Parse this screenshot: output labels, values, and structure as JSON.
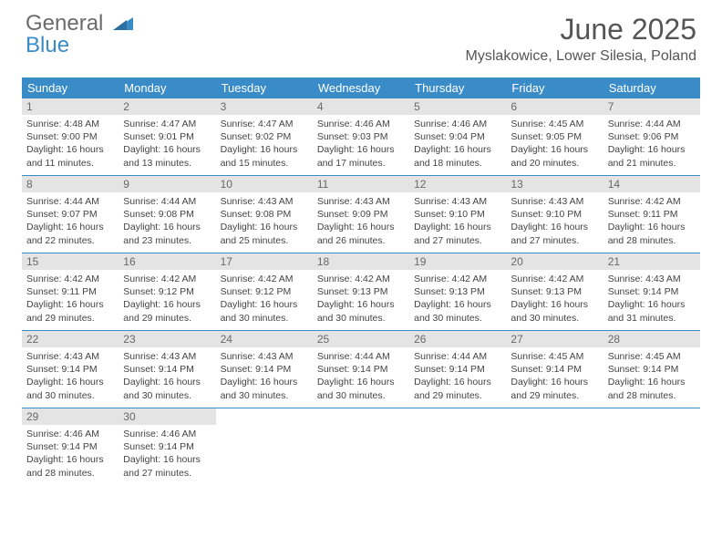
{
  "brand": {
    "word1": "General",
    "word2": "Blue"
  },
  "title": "June 2025",
  "location": "Myslakowice, Lower Silesia, Poland",
  "colors": {
    "header_bg": "#3a8cc9",
    "daynum_bg": "#e4e4e4",
    "text": "#444444",
    "title_text": "#555555"
  },
  "day_names": [
    "Sunday",
    "Monday",
    "Tuesday",
    "Wednesday",
    "Thursday",
    "Friday",
    "Saturday"
  ],
  "weeks": [
    [
      {
        "day": "1",
        "sunrise": "Sunrise: 4:48 AM",
        "sunset": "Sunset: 9:00 PM",
        "dl1": "Daylight: 16 hours",
        "dl2": "and 11 minutes."
      },
      {
        "day": "2",
        "sunrise": "Sunrise: 4:47 AM",
        "sunset": "Sunset: 9:01 PM",
        "dl1": "Daylight: 16 hours",
        "dl2": "and 13 minutes."
      },
      {
        "day": "3",
        "sunrise": "Sunrise: 4:47 AM",
        "sunset": "Sunset: 9:02 PM",
        "dl1": "Daylight: 16 hours",
        "dl2": "and 15 minutes."
      },
      {
        "day": "4",
        "sunrise": "Sunrise: 4:46 AM",
        "sunset": "Sunset: 9:03 PM",
        "dl1": "Daylight: 16 hours",
        "dl2": "and 17 minutes."
      },
      {
        "day": "5",
        "sunrise": "Sunrise: 4:46 AM",
        "sunset": "Sunset: 9:04 PM",
        "dl1": "Daylight: 16 hours",
        "dl2": "and 18 minutes."
      },
      {
        "day": "6",
        "sunrise": "Sunrise: 4:45 AM",
        "sunset": "Sunset: 9:05 PM",
        "dl1": "Daylight: 16 hours",
        "dl2": "and 20 minutes."
      },
      {
        "day": "7",
        "sunrise": "Sunrise: 4:44 AM",
        "sunset": "Sunset: 9:06 PM",
        "dl1": "Daylight: 16 hours",
        "dl2": "and 21 minutes."
      }
    ],
    [
      {
        "day": "8",
        "sunrise": "Sunrise: 4:44 AM",
        "sunset": "Sunset: 9:07 PM",
        "dl1": "Daylight: 16 hours",
        "dl2": "and 22 minutes."
      },
      {
        "day": "9",
        "sunrise": "Sunrise: 4:44 AM",
        "sunset": "Sunset: 9:08 PM",
        "dl1": "Daylight: 16 hours",
        "dl2": "and 23 minutes."
      },
      {
        "day": "10",
        "sunrise": "Sunrise: 4:43 AM",
        "sunset": "Sunset: 9:08 PM",
        "dl1": "Daylight: 16 hours",
        "dl2": "and 25 minutes."
      },
      {
        "day": "11",
        "sunrise": "Sunrise: 4:43 AM",
        "sunset": "Sunset: 9:09 PM",
        "dl1": "Daylight: 16 hours",
        "dl2": "and 26 minutes."
      },
      {
        "day": "12",
        "sunrise": "Sunrise: 4:43 AM",
        "sunset": "Sunset: 9:10 PM",
        "dl1": "Daylight: 16 hours",
        "dl2": "and 27 minutes."
      },
      {
        "day": "13",
        "sunrise": "Sunrise: 4:43 AM",
        "sunset": "Sunset: 9:10 PM",
        "dl1": "Daylight: 16 hours",
        "dl2": "and 27 minutes."
      },
      {
        "day": "14",
        "sunrise": "Sunrise: 4:42 AM",
        "sunset": "Sunset: 9:11 PM",
        "dl1": "Daylight: 16 hours",
        "dl2": "and 28 minutes."
      }
    ],
    [
      {
        "day": "15",
        "sunrise": "Sunrise: 4:42 AM",
        "sunset": "Sunset: 9:11 PM",
        "dl1": "Daylight: 16 hours",
        "dl2": "and 29 minutes."
      },
      {
        "day": "16",
        "sunrise": "Sunrise: 4:42 AM",
        "sunset": "Sunset: 9:12 PM",
        "dl1": "Daylight: 16 hours",
        "dl2": "and 29 minutes."
      },
      {
        "day": "17",
        "sunrise": "Sunrise: 4:42 AM",
        "sunset": "Sunset: 9:12 PM",
        "dl1": "Daylight: 16 hours",
        "dl2": "and 30 minutes."
      },
      {
        "day": "18",
        "sunrise": "Sunrise: 4:42 AM",
        "sunset": "Sunset: 9:13 PM",
        "dl1": "Daylight: 16 hours",
        "dl2": "and 30 minutes."
      },
      {
        "day": "19",
        "sunrise": "Sunrise: 4:42 AM",
        "sunset": "Sunset: 9:13 PM",
        "dl1": "Daylight: 16 hours",
        "dl2": "and 30 minutes."
      },
      {
        "day": "20",
        "sunrise": "Sunrise: 4:42 AM",
        "sunset": "Sunset: 9:13 PM",
        "dl1": "Daylight: 16 hours",
        "dl2": "and 30 minutes."
      },
      {
        "day": "21",
        "sunrise": "Sunrise: 4:43 AM",
        "sunset": "Sunset: 9:14 PM",
        "dl1": "Daylight: 16 hours",
        "dl2": "and 31 minutes."
      }
    ],
    [
      {
        "day": "22",
        "sunrise": "Sunrise: 4:43 AM",
        "sunset": "Sunset: 9:14 PM",
        "dl1": "Daylight: 16 hours",
        "dl2": "and 30 minutes."
      },
      {
        "day": "23",
        "sunrise": "Sunrise: 4:43 AM",
        "sunset": "Sunset: 9:14 PM",
        "dl1": "Daylight: 16 hours",
        "dl2": "and 30 minutes."
      },
      {
        "day": "24",
        "sunrise": "Sunrise: 4:43 AM",
        "sunset": "Sunset: 9:14 PM",
        "dl1": "Daylight: 16 hours",
        "dl2": "and 30 minutes."
      },
      {
        "day": "25",
        "sunrise": "Sunrise: 4:44 AM",
        "sunset": "Sunset: 9:14 PM",
        "dl1": "Daylight: 16 hours",
        "dl2": "and 30 minutes."
      },
      {
        "day": "26",
        "sunrise": "Sunrise: 4:44 AM",
        "sunset": "Sunset: 9:14 PM",
        "dl1": "Daylight: 16 hours",
        "dl2": "and 29 minutes."
      },
      {
        "day": "27",
        "sunrise": "Sunrise: 4:45 AM",
        "sunset": "Sunset: 9:14 PM",
        "dl1": "Daylight: 16 hours",
        "dl2": "and 29 minutes."
      },
      {
        "day": "28",
        "sunrise": "Sunrise: 4:45 AM",
        "sunset": "Sunset: 9:14 PM",
        "dl1": "Daylight: 16 hours",
        "dl2": "and 28 minutes."
      }
    ],
    [
      {
        "day": "29",
        "sunrise": "Sunrise: 4:46 AM",
        "sunset": "Sunset: 9:14 PM",
        "dl1": "Daylight: 16 hours",
        "dl2": "and 28 minutes."
      },
      {
        "day": "30",
        "sunrise": "Sunrise: 4:46 AM",
        "sunset": "Sunset: 9:14 PM",
        "dl1": "Daylight: 16 hours",
        "dl2": "and 27 minutes."
      },
      null,
      null,
      null,
      null,
      null
    ]
  ]
}
